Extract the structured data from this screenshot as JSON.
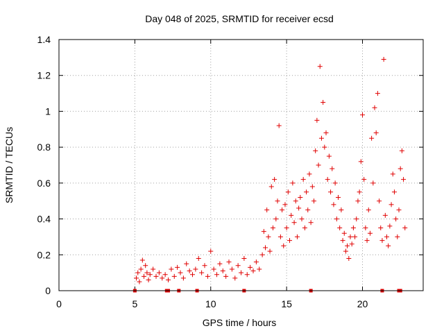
{
  "chart_data": {
    "type": "scatter",
    "title": "Day 048 of 2025, SRMTID for receiver ecsd",
    "xlabel": "GPS time / hours",
    "ylabel": "SRMTID / TECUs",
    "xlim": [
      0,
      24
    ],
    "ylim": [
      0,
      1.4
    ],
    "xticks": [
      0,
      5,
      10,
      15,
      20
    ],
    "yticks": [
      0,
      0.2,
      0.4,
      0.6,
      0.8,
      1,
      1.2,
      1.4
    ],
    "xtick_labels": [
      "0",
      "5",
      "10",
      "15",
      "20"
    ],
    "ytick_labels": [
      "0",
      "0.2",
      "0.4",
      "0.6",
      "0.8",
      "1",
      "1.2",
      "1.4"
    ],
    "grid": true,
    "marker": "+",
    "series": [
      {
        "name": "SRMTID",
        "color": "#e00000",
        "x": [
          5.1,
          5.2,
          5.3,
          5.4,
          5.5,
          5.6,
          5.7,
          5.8,
          5.9,
          6.0,
          6.2,
          6.4,
          6.6,
          6.8,
          7.0,
          7.2,
          7.4,
          7.6,
          7.8,
          8.0,
          8.2,
          8.4,
          8.6,
          8.8,
          9.0,
          9.2,
          9.4,
          9.6,
          9.8,
          10.0,
          10.2,
          10.4,
          10.6,
          10.8,
          11.0,
          11.2,
          11.4,
          11.6,
          11.8,
          12.0,
          12.2,
          12.4,
          12.6,
          12.8,
          13.0,
          13.2,
          13.4,
          13.5,
          13.6,
          13.7,
          13.8,
          13.9,
          14.0,
          14.1,
          14.2,
          14.3,
          14.4,
          14.5,
          14.6,
          14.7,
          14.8,
          14.9,
          15.0,
          15.1,
          15.2,
          15.3,
          15.4,
          15.5,
          15.6,
          15.7,
          15.8,
          15.9,
          16.0,
          16.1,
          16.2,
          16.3,
          16.4,
          16.5,
          16.6,
          16.7,
          16.8,
          16.9,
          17.0,
          17.1,
          17.2,
          17.3,
          17.4,
          17.5,
          17.6,
          17.7,
          17.8,
          17.9,
          18.0,
          18.1,
          18.2,
          18.3,
          18.4,
          18.5,
          18.6,
          18.7,
          18.8,
          18.9,
          19.0,
          19.1,
          19.2,
          19.3,
          19.4,
          19.5,
          19.6,
          19.7,
          19.8,
          19.9,
          20.0,
          20.1,
          20.2,
          20.3,
          20.4,
          20.5,
          20.6,
          20.7,
          20.8,
          20.9,
          21.0,
          21.1,
          21.2,
          21.3,
          21.4,
          21.5,
          21.6,
          21.7,
          21.8,
          21.9,
          22.0,
          22.1,
          22.2,
          22.3,
          22.4,
          22.5,
          22.6,
          22.7,
          22.8
        ],
        "y": [
          0.07,
          0.1,
          0.05,
          0.12,
          0.17,
          0.08,
          0.14,
          0.1,
          0.06,
          0.09,
          0.12,
          0.08,
          0.1,
          0.07,
          0.09,
          0.06,
          0.12,
          0.08,
          0.13,
          0.1,
          0.07,
          0.15,
          0.11,
          0.09,
          0.12,
          0.18,
          0.1,
          0.14,
          0.08,
          0.22,
          0.12,
          0.09,
          0.15,
          0.11,
          0.08,
          0.16,
          0.12,
          0.07,
          0.14,
          0.1,
          0.18,
          0.09,
          0.13,
          0.11,
          0.16,
          0.12,
          0.2,
          0.33,
          0.24,
          0.45,
          0.3,
          0.22,
          0.58,
          0.35,
          0.62,
          0.4,
          0.5,
          0.92,
          0.3,
          0.45,
          0.25,
          0.48,
          0.35,
          0.55,
          0.28,
          0.42,
          0.6,
          0.38,
          0.5,
          0.3,
          0.46,
          0.52,
          0.4,
          0.62,
          0.35,
          0.55,
          0.45,
          0.65,
          0.38,
          0.58,
          0.5,
          0.78,
          0.95,
          0.7,
          1.25,
          0.85,
          1.05,
          0.8,
          0.88,
          0.62,
          0.75,
          0.55,
          0.68,
          0.48,
          0.6,
          0.4,
          0.52,
          0.35,
          0.45,
          0.28,
          0.32,
          0.22,
          0.25,
          0.18,
          0.3,
          0.26,
          0.35,
          0.3,
          0.4,
          0.5,
          0.55,
          0.72,
          0.98,
          0.62,
          0.35,
          0.28,
          0.45,
          0.32,
          0.85,
          0.6,
          1.02,
          0.88,
          1.1,
          0.5,
          0.35,
          0.28,
          1.29,
          0.42,
          0.3,
          0.25,
          0.36,
          0.48,
          0.65,
          0.55,
          0.4,
          0.3,
          0.45,
          0.68,
          0.78,
          0.62,
          0.35
        ],
        "zero_markers_x": [
          5.0,
          7.1,
          7.2,
          7.9,
          9.1,
          12.2,
          16.6,
          21.3,
          22.4,
          22.5
        ]
      }
    ]
  }
}
